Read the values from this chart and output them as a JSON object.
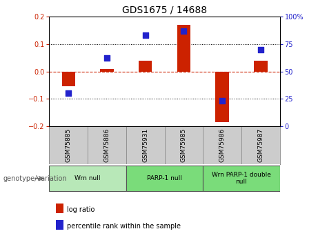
{
  "title": "GDS1675 / 14688",
  "samples": [
    "GSM75885",
    "GSM75886",
    "GSM75931",
    "GSM75985",
    "GSM75986",
    "GSM75987"
  ],
  "log_ratio": [
    -0.055,
    0.01,
    0.04,
    0.17,
    -0.185,
    0.04
  ],
  "percentile_rank": [
    30,
    62,
    83,
    87,
    23,
    70
  ],
  "groups": [
    {
      "label": "Wrn null",
      "start": 0,
      "end": 2,
      "color": "#b8e8b8"
    },
    {
      "label": "PARP-1 null",
      "start": 2,
      "end": 4,
      "color": "#7adc7a"
    },
    {
      "label": "Wrn PARP-1 double\nnull",
      "start": 4,
      "end": 6,
      "color": "#7adc7a"
    }
  ],
  "ylim_left": [
    -0.2,
    0.2
  ],
  "ylim_right": [
    0,
    100
  ],
  "yticks_left": [
    -0.2,
    -0.1,
    0.0,
    0.1,
    0.2
  ],
  "yticks_right": [
    0,
    25,
    50,
    75,
    100
  ],
  "bar_color": "#cc2200",
  "dot_color": "#2222cc",
  "zero_line_color": "#cc2200",
  "grid_color": "black",
  "bg_color": "#ffffff",
  "plot_bg": "#ffffff",
  "label_bg": "#cccccc",
  "tick_label_color_left": "#cc2200",
  "tick_label_color_right": "#2222cc",
  "legend_items": [
    {
      "label": "log ratio",
      "color": "#cc2200"
    },
    {
      "label": "percentile rank within the sample",
      "color": "#2222cc"
    }
  ],
  "genotype_label": "genotype/variation",
  "bar_width": 0.35,
  "dot_size": 40
}
